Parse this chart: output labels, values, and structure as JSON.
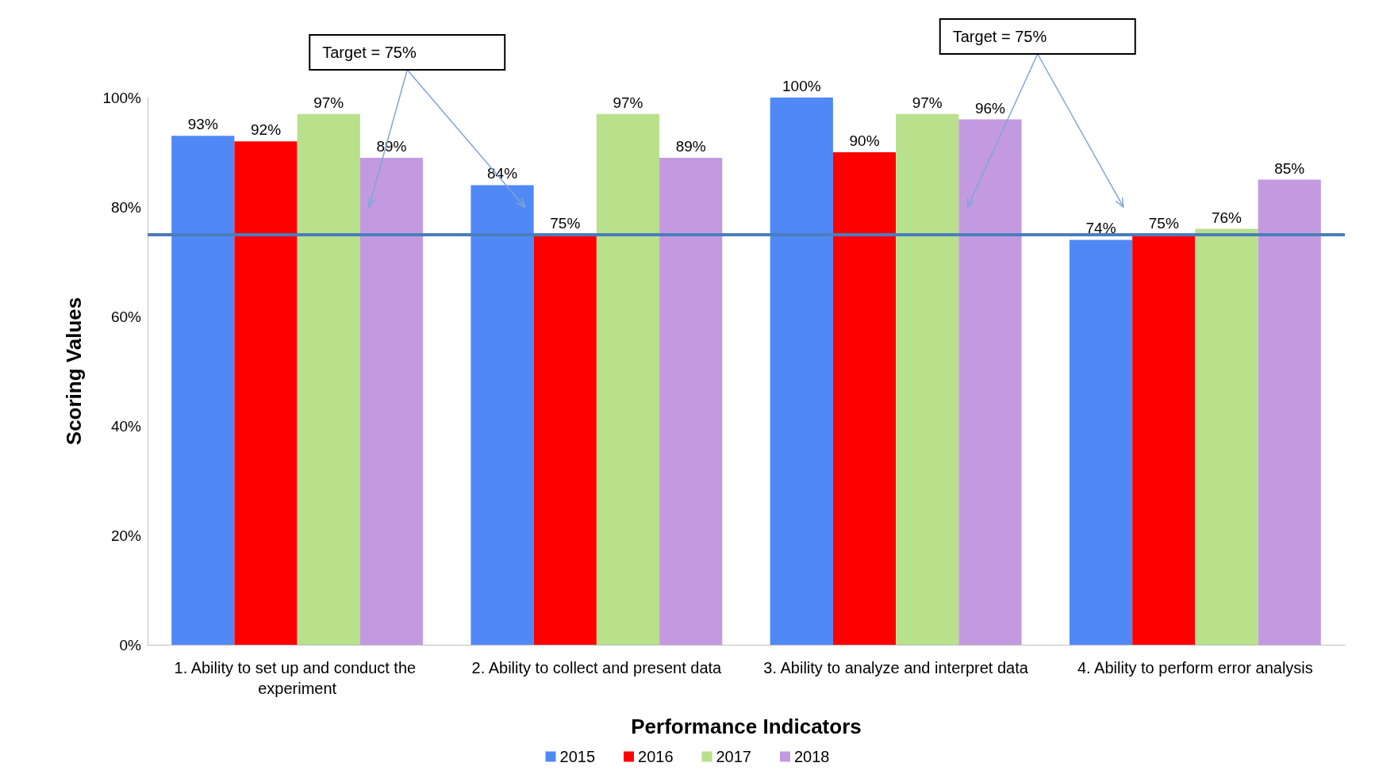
{
  "chart_data": {
    "type": "bar",
    "xlabel": "Performance Indicators",
    "ylabel": "Scoring Values",
    "categories": [
      "1. Ability to set up and conduct the experiment",
      "2. Ability to collect and present data",
      "3. Ability to analyze and interpret data",
      "4. Ability to perform error analysis"
    ],
    "series": [
      {
        "name": "2015",
        "color": "#5088f5",
        "values": [
          93,
          84,
          100,
          74
        ],
        "value_labels": [
          "93%",
          "84%",
          "100%",
          "74%"
        ]
      },
      {
        "name": "2016",
        "color": "#ff0000",
        "values": [
          92,
          75,
          90,
          75
        ],
        "value_labels": [
          "92%",
          "75%",
          "90%",
          "75%"
        ]
      },
      {
        "name": "2017",
        "color": "#b9e08b",
        "values": [
          97,
          97,
          97,
          76
        ],
        "value_labels": [
          "97%",
          "97%",
          "97%",
          "76%"
        ]
      },
      {
        "name": "2018",
        "color": "#c39ae0",
        "values": [
          89,
          89,
          96,
          85
        ],
        "value_labels": [
          "89%",
          "89%",
          "96%",
          "85%"
        ]
      }
    ],
    "ylim": [
      0,
      100
    ],
    "yticks": [
      {
        "value": 0,
        "label": "0%"
      },
      {
        "value": 20,
        "label": "20%"
      },
      {
        "value": 40,
        "label": "40%"
      },
      {
        "value": 60,
        "label": "60%"
      },
      {
        "value": 80,
        "label": "80%"
      },
      {
        "value": 100,
        "label": "100%"
      }
    ],
    "ref_lines": [
      {
        "axis": "y",
        "value": 75,
        "color": "#4a7ebb"
      }
    ],
    "annotations": [
      "Target = 75%",
      "Target = 75%"
    ],
    "grid": false,
    "legend": "bottom"
  }
}
